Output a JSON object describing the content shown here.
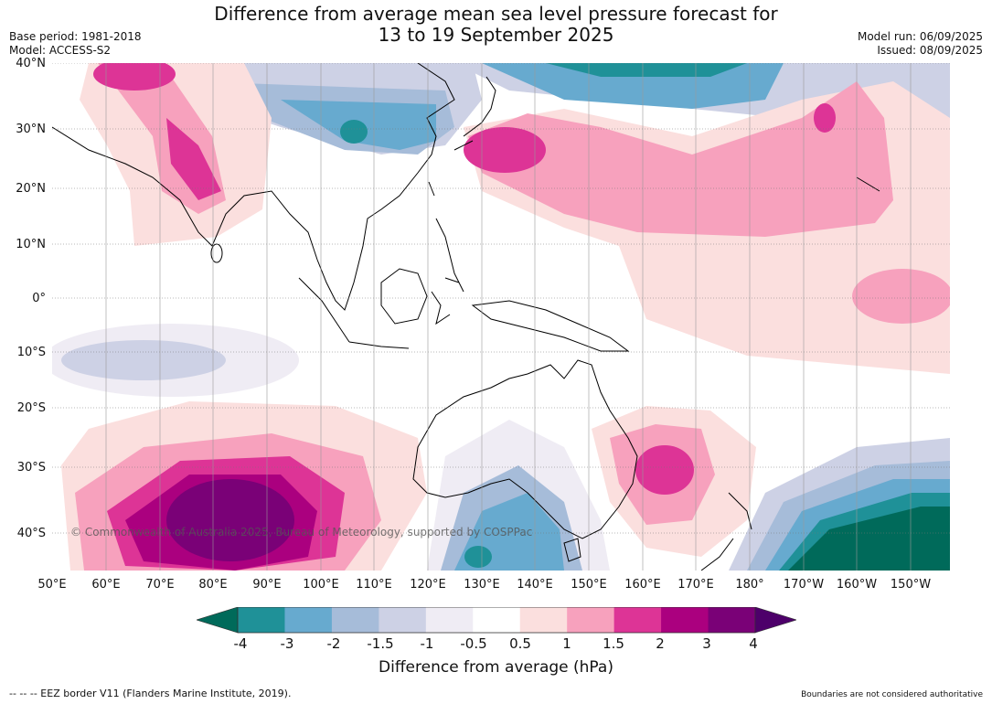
{
  "title_line1": "Difference from average mean sea level pressure forecast for",
  "title_line2": "13 to 19 September 2025",
  "base_period": "Base period: 1981-2018",
  "model": "Model: ACCESS-S2",
  "model_run": "Model run: 06/09/2025",
  "issued": "Issued: 08/09/2025",
  "lat_labels": [
    "40°N",
    "30°N",
    "20°N",
    "10°N",
    "0°",
    "10°S",
    "20°S",
    "30°S",
    "40°S"
  ],
  "lon_labels": [
    "50°E",
    "60°E",
    "70°E",
    "80°E",
    "90°E",
    "100°E",
    "110°E",
    "120°E",
    "130°E",
    "140°E",
    "150°E",
    "160°E",
    "170°E",
    "180°",
    "170°W",
    "160°W",
    "150°W"
  ],
  "colorbar": {
    "ticks": [
      "-4",
      "-3",
      "-2",
      "-1.5",
      "-1",
      "-0.5",
      "0.5",
      "1",
      "1.5",
      "2",
      "3",
      "4"
    ],
    "colors": [
      "#006a5a",
      "#1f9198",
      "#67aacf",
      "#a6bcd9",
      "#cdd1e5",
      "#efecf4",
      "#ffffff",
      "#fbdfde",
      "#f7a1bd",
      "#dd3496",
      "#ab007f",
      "#7a0177",
      "#4d006a"
    ],
    "title": "Difference from average (hPa)"
  },
  "copyright": "© Commonwealth of Australia 2025, Bureau of Meteorology, supported by COSPPac",
  "footer_left": "-- -- -- EEZ border V11 (Flanders Marine Institute, 2019).",
  "footer_right": "Boundaries are not considered authoritative"
}
